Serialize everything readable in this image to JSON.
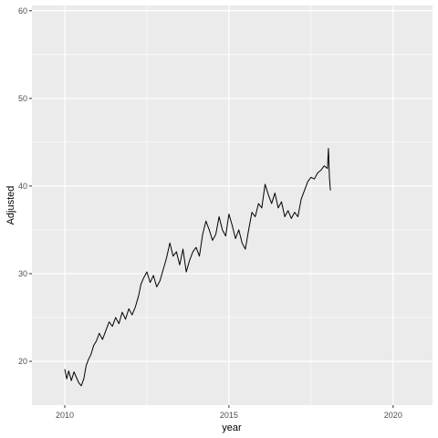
{
  "chart_data": {
    "type": "line",
    "xlabel": "year",
    "ylabel": "Adjusted",
    "xlim": [
      2009.0,
      2021.2
    ],
    "ylim": [
      15.0,
      60.6
    ],
    "x_ticks": [
      2010,
      2015,
      2020
    ],
    "x_tick_labels": [
      "2010",
      "2015",
      "2020"
    ],
    "y_ticks": [
      20,
      30,
      40,
      50,
      60
    ],
    "y_tick_labels": [
      "20",
      "30",
      "40",
      "50",
      "60"
    ],
    "grid": true,
    "legend": "none",
    "colors": {
      "panel": "#ebebeb",
      "grid": "#ffffff",
      "line": "#000000",
      "tick_text": "#4d4d4d"
    },
    "series": [
      {
        "x": [
          2010.0,
          2010.06,
          2010.12,
          2010.2,
          2010.28,
          2010.35,
          2010.42,
          2010.5,
          2010.58,
          2010.65,
          2010.72,
          2010.8,
          2010.88,
          2010.96,
          2011.05,
          2011.15,
          2011.25,
          2011.35,
          2011.45,
          2011.55,
          2011.65,
          2011.75,
          2011.85,
          2011.95,
          2012.05,
          2012.15,
          2012.25,
          2012.32,
          2012.4,
          2012.5,
          2012.6,
          2012.7,
          2012.8,
          2012.9,
          2013.0,
          2013.1,
          2013.2,
          2013.3,
          2013.4,
          2013.5,
          2013.6,
          2013.7,
          2013.8,
          2013.9,
          2014.0,
          2014.1,
          2014.2,
          2014.3,
          2014.4,
          2014.5,
          2014.6,
          2014.7,
          2014.8,
          2014.9,
          2015.0,
          2015.1,
          2015.2,
          2015.3,
          2015.4,
          2015.5,
          2015.6,
          2015.7,
          2015.8,
          2015.9,
          2016.0,
          2016.1,
          2016.2,
          2016.3,
          2016.4,
          2016.5,
          2016.6,
          2016.7,
          2016.8,
          2016.9,
          2017.0,
          2017.1,
          2017.2,
          2017.3,
          2017.4,
          2017.5,
          2017.6,
          2017.7,
          2017.8,
          2017.9,
          2018.0,
          2018.03,
          2018.06,
          2018.09
        ],
        "y": [
          19.1,
          18.0,
          18.9,
          17.8,
          18.8,
          18.2,
          17.6,
          17.2,
          18.0,
          19.5,
          20.2,
          20.8,
          21.8,
          22.3,
          23.2,
          22.5,
          23.5,
          24.5,
          24.0,
          25.0,
          24.3,
          25.6,
          24.8,
          26.0,
          25.3,
          26.2,
          27.5,
          28.8,
          29.5,
          30.2,
          29.0,
          29.8,
          28.5,
          29.2,
          30.5,
          31.8,
          33.5,
          32.0,
          32.5,
          31.0,
          32.8,
          30.2,
          31.5,
          32.5,
          33.0,
          32.0,
          34.5,
          36.0,
          35.0,
          33.8,
          34.5,
          36.5,
          35.0,
          34.3,
          36.8,
          35.5,
          34.0,
          35.0,
          33.5,
          32.8,
          35.0,
          37.0,
          36.5,
          38.0,
          37.5,
          40.2,
          39.0,
          38.0,
          39.2,
          37.5,
          38.2,
          36.5,
          37.2,
          36.3,
          37.0,
          36.5,
          38.5,
          39.5,
          40.5,
          41.0,
          40.8,
          41.5,
          41.8,
          42.3,
          42.0,
          44.3,
          41.0,
          39.5
        ]
      }
    ]
  }
}
